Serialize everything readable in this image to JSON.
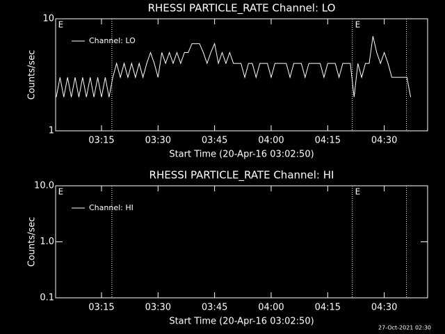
{
  "chart_data": [
    {
      "type": "line",
      "title": "RHESSI PARTICLE_RATE Channel: LO",
      "xlabel": "Start Time (20-Apr-16 03:02:50)",
      "ylabel": "Counts/sec",
      "log_y": true,
      "ylim": [
        1,
        10
      ],
      "yticks": [
        1,
        10
      ],
      "xlim": [
        "03:02:50",
        "04:41:30"
      ],
      "xticks": [
        "03:15",
        "03:30",
        "03:45",
        "04:00",
        "04:15",
        "04:30"
      ],
      "vlines": [
        "03:17:45",
        "04:21:32",
        "04:35:53"
      ],
      "annotations": [
        {
          "text": "E",
          "x": "03:03:30"
        },
        {
          "text": "E",
          "x": "04:22:15"
        }
      ],
      "legend": "upper left",
      "series": [
        {
          "name": "Channel: LO",
          "color": "#ffffff",
          "x": [
            "03:03",
            "03:04",
            "03:05",
            "03:06",
            "03:07",
            "03:08",
            "03:09",
            "03:10",
            "03:11",
            "03:12",
            "03:13",
            "03:14",
            "03:15",
            "03:16",
            "03:17",
            "03:18",
            "03:19",
            "03:20",
            "03:21",
            "03:22",
            "03:23",
            "03:24",
            "03:25",
            "03:26",
            "03:27",
            "03:28",
            "03:29",
            "03:30",
            "03:31",
            "03:32",
            "03:33",
            "03:34",
            "03:35",
            "03:36",
            "03:37",
            "03:38",
            "03:39",
            "03:40",
            "03:41",
            "03:42",
            "03:43",
            "03:44",
            "03:45",
            "03:46",
            "03:47",
            "03:48",
            "03:49",
            "03:50",
            "03:51",
            "03:52",
            "03:53",
            "03:54",
            "03:55",
            "03:56",
            "03:57",
            "03:58",
            "03:59",
            "04:00",
            "04:01",
            "04:02",
            "04:03",
            "04:04",
            "04:05",
            "04:06",
            "04:07",
            "04:08",
            "04:09",
            "04:10",
            "04:11",
            "04:12",
            "04:13",
            "04:14",
            "04:15",
            "04:16",
            "04:17",
            "04:18",
            "04:19",
            "04:20",
            "04:21",
            "04:22",
            "04:23",
            "04:24",
            "04:25",
            "04:26",
            "04:27",
            "04:28",
            "04:29",
            "04:30",
            "04:31",
            "04:32",
            "04:33",
            "04:34",
            "04:35",
            "04:36",
            "04:37"
          ],
          "values": [
            2,
            3,
            2,
            3,
            2,
            3,
            2,
            3,
            2,
            3,
            2,
            3,
            2,
            3,
            2,
            3,
            4,
            3,
            4,
            3,
            4,
            3,
            4,
            3,
            4,
            5,
            4,
            3,
            5,
            4,
            5,
            4,
            5,
            4,
            5,
            5,
            6,
            6,
            6,
            5,
            4,
            5,
            6,
            4,
            5,
            4,
            5,
            4,
            4,
            4,
            3,
            4,
            4,
            3,
            4,
            4,
            4,
            3,
            4,
            4,
            4,
            4,
            3,
            4,
            4,
            4,
            3,
            4,
            4,
            4,
            4,
            3,
            4,
            4,
            4,
            3,
            4,
            4,
            4,
            2,
            4,
            3,
            4,
            4,
            7,
            5,
            4,
            5,
            4,
            3,
            3,
            3,
            3,
            3,
            2
          ]
        }
      ]
    },
    {
      "type": "line",
      "title": "RHESSI PARTICLE_RATE Channel: HI",
      "xlabel": "Start Time (20-Apr-16 03:02:50)",
      "ylabel": "Counts/sec",
      "log_y": true,
      "ylim": [
        0.1,
        10
      ],
      "yticks": [
        0.1,
        {
          "value": 1,
          "label": "1.0"
        },
        {
          "value": 10,
          "label": "10.0"
        }
      ],
      "xlim": [
        "03:02:50",
        "04:41:30"
      ],
      "xticks": [
        "03:15",
        "03:30",
        "03:45",
        "04:00",
        "04:15",
        "04:30"
      ],
      "vlines": [
        "03:17:45",
        "04:21:32",
        "04:35:53"
      ],
      "annotations": [
        {
          "text": "E",
          "x": "03:03:30"
        },
        {
          "text": "E",
          "x": "04:22:15"
        }
      ],
      "legend": "upper left",
      "series": [
        {
          "name": "Channel: HI",
          "color": "#ffffff",
          "x": [],
          "values": []
        }
      ]
    }
  ],
  "footer": "27-Oct-2021 02:30"
}
